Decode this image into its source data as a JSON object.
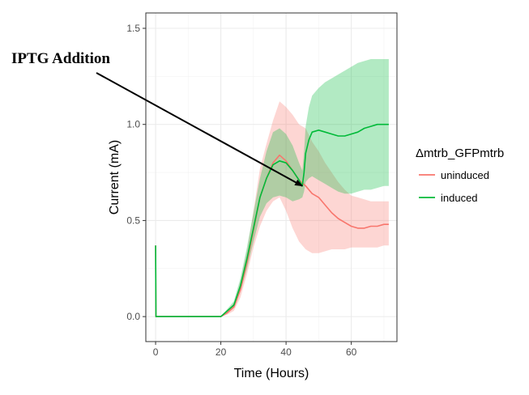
{
  "chart_data": {
    "type": "line",
    "title": "",
    "xlabel": "Time (Hours)",
    "ylabel": "Current (mA)",
    "xlim": [
      -3,
      74
    ],
    "ylim": [
      -0.13,
      1.58
    ],
    "x_ticks": [
      0,
      20,
      40,
      60
    ],
    "y_ticks": [
      0.0,
      0.5,
      1.0,
      1.5
    ],
    "x_tick_labels": [
      "0",
      "20",
      "40",
      "60"
    ],
    "y_tick_labels": [
      "0.0",
      "0.5",
      "1.0",
      "1.5"
    ],
    "grid": true,
    "legend_title": "Δmtrb_GFPmtrb",
    "legend_position": "right",
    "series": [
      {
        "name": "uninduced",
        "color": "#F8766D",
        "x": [
          0,
          0.1,
          2,
          10,
          20,
          22,
          24,
          26,
          28,
          30,
          32,
          34,
          36,
          38,
          40,
          42,
          44,
          46,
          48,
          50,
          52,
          54,
          56,
          58,
          60,
          62,
          64,
          66,
          68,
          70,
          71.5
        ],
        "y": [
          0.37,
          0.0,
          0.0,
          0.0,
          0.0,
          0.02,
          0.05,
          0.14,
          0.28,
          0.45,
          0.62,
          0.72,
          0.8,
          0.84,
          0.81,
          0.76,
          0.71,
          0.68,
          0.64,
          0.62,
          0.58,
          0.54,
          0.51,
          0.49,
          0.47,
          0.46,
          0.46,
          0.47,
          0.47,
          0.48,
          0.48
        ],
        "lower": [
          0.37,
          0.0,
          0.0,
          0.0,
          0.0,
          0.01,
          0.03,
          0.1,
          0.22,
          0.36,
          0.47,
          0.55,
          0.6,
          0.62,
          0.55,
          0.46,
          0.39,
          0.35,
          0.33,
          0.33,
          0.34,
          0.35,
          0.35,
          0.35,
          0.36,
          0.36,
          0.36,
          0.36,
          0.36,
          0.37,
          0.37
        ],
        "upper": [
          0.37,
          0.0,
          0.0,
          0.0,
          0.0,
          0.03,
          0.07,
          0.18,
          0.34,
          0.55,
          0.77,
          0.9,
          1.02,
          1.12,
          1.09,
          1.05,
          1.0,
          0.98,
          0.91,
          0.86,
          0.8,
          0.75,
          0.7,
          0.66,
          0.63,
          0.62,
          0.61,
          0.6,
          0.6,
          0.6,
          0.6
        ]
      },
      {
        "name": "induced",
        "color": "#00BA38",
        "x": [
          0,
          0.1,
          2,
          10,
          20,
          22,
          24,
          26,
          28,
          30,
          32,
          34,
          36,
          38,
          40,
          42,
          44,
          45,
          45.5,
          46,
          47,
          48,
          50,
          52,
          54,
          56,
          58,
          60,
          62,
          64,
          66,
          68,
          70,
          71.5
        ],
        "y": [
          0.37,
          0.0,
          0.0,
          0.0,
          0.0,
          0.03,
          0.06,
          0.16,
          0.3,
          0.46,
          0.62,
          0.72,
          0.79,
          0.81,
          0.8,
          0.76,
          0.71,
          0.68,
          0.75,
          0.85,
          0.92,
          0.96,
          0.97,
          0.96,
          0.95,
          0.94,
          0.94,
          0.95,
          0.96,
          0.98,
          0.99,
          1.0,
          1.0,
          1.0
        ],
        "lower": [
          0.37,
          0.0,
          0.0,
          0.0,
          0.0,
          0.02,
          0.05,
          0.13,
          0.25,
          0.39,
          0.52,
          0.59,
          0.62,
          0.63,
          0.62,
          0.6,
          0.61,
          0.62,
          0.65,
          0.7,
          0.72,
          0.73,
          0.71,
          0.69,
          0.67,
          0.65,
          0.64,
          0.64,
          0.65,
          0.66,
          0.66,
          0.67,
          0.68,
          0.68
        ],
        "upper": [
          0.37,
          0.0,
          0.0,
          0.0,
          0.0,
          0.04,
          0.08,
          0.2,
          0.36,
          0.54,
          0.72,
          0.86,
          0.96,
          0.98,
          0.95,
          0.89,
          0.8,
          0.76,
          0.86,
          0.99,
          1.09,
          1.15,
          1.19,
          1.22,
          1.24,
          1.26,
          1.28,
          1.3,
          1.32,
          1.33,
          1.34,
          1.34,
          1.34,
          1.34
        ]
      }
    ],
    "annotation": {
      "text": "IPTG Addition",
      "target_x": 45,
      "target_y": 0.68
    }
  }
}
